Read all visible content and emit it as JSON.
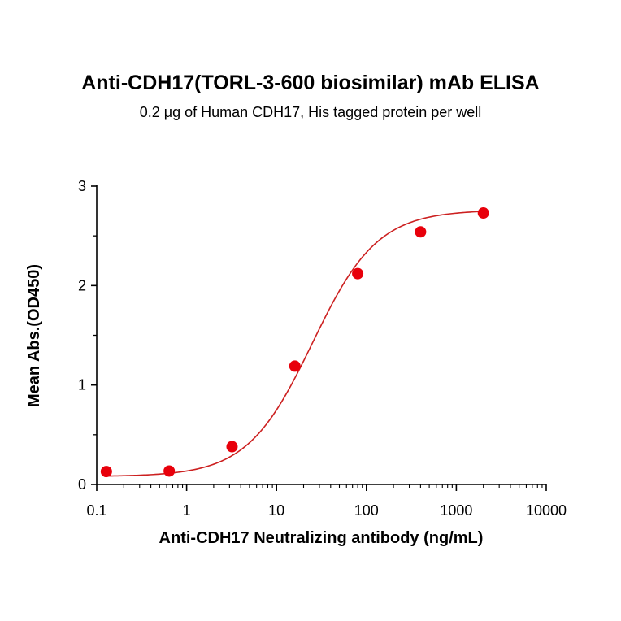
{
  "chart_data": {
    "type": "scatter",
    "title": "Anti-CDH17(TORL-3-600 biosimilar) mAb ELISA",
    "subtitle": "0.2 μg of Human CDH17, His tagged protein per well",
    "xlabel": "Anti-CDH17 Neutralizing antibody (ng/mL)",
    "ylabel": "Mean Abs.(OD450)",
    "x_scale": "log",
    "xlim": [
      0.1,
      10000
    ],
    "ylim": [
      0,
      3
    ],
    "x_ticks": [
      "0.1",
      "1",
      "10",
      "100",
      "1000",
      "10000"
    ],
    "y_ticks": [
      "0",
      "1",
      "2",
      "3"
    ],
    "grid": false,
    "series": [
      {
        "color": "#e8000b",
        "curve_color": "#cc2020",
        "x": [
          0.128,
          0.64,
          3.2,
          16,
          80,
          400,
          2000
        ],
        "y": [
          0.13,
          0.135,
          0.38,
          1.19,
          2.12,
          2.54,
          2.73
        ],
        "fit": {
          "model": "4PL",
          "bottom": 0.08,
          "top": 2.76,
          "ec50": 25,
          "hill": 1.2
        }
      }
    ]
  }
}
